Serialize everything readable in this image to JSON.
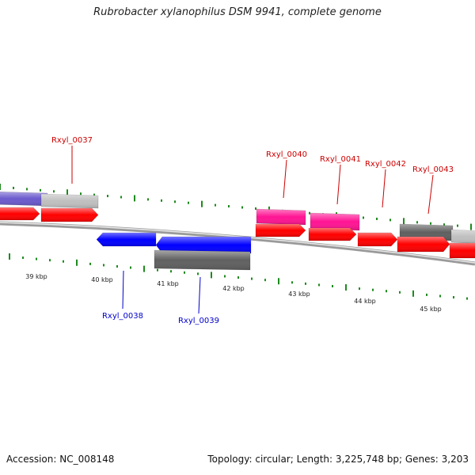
{
  "title": "Rubrobacter xylanophilus DSM 9941, complete genome",
  "footer": {
    "accession": "Accession: NC_008148",
    "stats": "Topology: circular; Length: 3,225,748 bp; Genes: 3,203"
  },
  "colors": {
    "background": "#ffffff",
    "tick": "#1e8a1e",
    "forward_label": "#cc0000",
    "reverse_label": "#0000cc",
    "cds_red": "#ff0000",
    "cds_blue": "#0000ff",
    "cds_pink": "#ff1493",
    "cds_gray": "#606060",
    "cds_lightgray": "#bfbfbf",
    "cds_purple": "#6a5acd",
    "backbone": "#888888"
  },
  "kbp_labels": [
    "39 kbp",
    "40 kbp",
    "41 kbp",
    "42 kbp",
    "43 kbp",
    "44 kbp",
    "45 kbp"
  ],
  "gene_labels": {
    "forward": [
      "Rxyl_0037",
      "Rxyl_0040",
      "Rxyl_0041",
      "Rxyl_0042",
      "Rxyl_0043"
    ],
    "reverse": [
      "Rxyl_0038",
      "Rxyl_0039"
    ]
  },
  "features": [
    {
      "name": "upstream-gene-purple",
      "strand": "+",
      "color": "purple",
      "kind": "gene"
    },
    {
      "name": "Rxyl_0037-gene",
      "strand": "+",
      "color": "lightgray",
      "kind": "gene"
    },
    {
      "name": "upstream-cds",
      "strand": "+",
      "color": "red",
      "kind": "cds"
    },
    {
      "name": "Rxyl_0037-cds",
      "strand": "+",
      "color": "red",
      "kind": "cds"
    },
    {
      "name": "Rxyl_0038-cds",
      "strand": "-",
      "color": "blue",
      "kind": "cds"
    },
    {
      "name": "Rxyl_0039-cds",
      "strand": "-",
      "color": "blue",
      "kind": "cds"
    },
    {
      "name": "Rxyl_0039-gene",
      "strand": "-",
      "color": "gray",
      "kind": "gene"
    },
    {
      "name": "Rxyl_0040-gene",
      "strand": "+",
      "color": "pink",
      "kind": "gene"
    },
    {
      "name": "Rxyl_0041-gene",
      "strand": "+",
      "color": "pink",
      "kind": "gene"
    },
    {
      "name": "Rxyl_0040-cds",
      "strand": "+",
      "color": "red",
      "kind": "cds"
    },
    {
      "name": "Rxyl_0041-cds",
      "strand": "+",
      "color": "red",
      "kind": "cds"
    },
    {
      "name": "Rxyl_0042-cds",
      "strand": "+",
      "color": "red",
      "kind": "cds"
    },
    {
      "name": "Rxyl_0043-gene",
      "strand": "+",
      "color": "gray",
      "kind": "gene"
    },
    {
      "name": "downstream-gene",
      "strand": "+",
      "color": "lightgray",
      "kind": "gene"
    },
    {
      "name": "Rxyl_0043-cds",
      "strand": "+",
      "color": "red",
      "kind": "cds"
    },
    {
      "name": "downstream-cds",
      "strand": "+",
      "color": "red",
      "kind": "cds"
    }
  ]
}
